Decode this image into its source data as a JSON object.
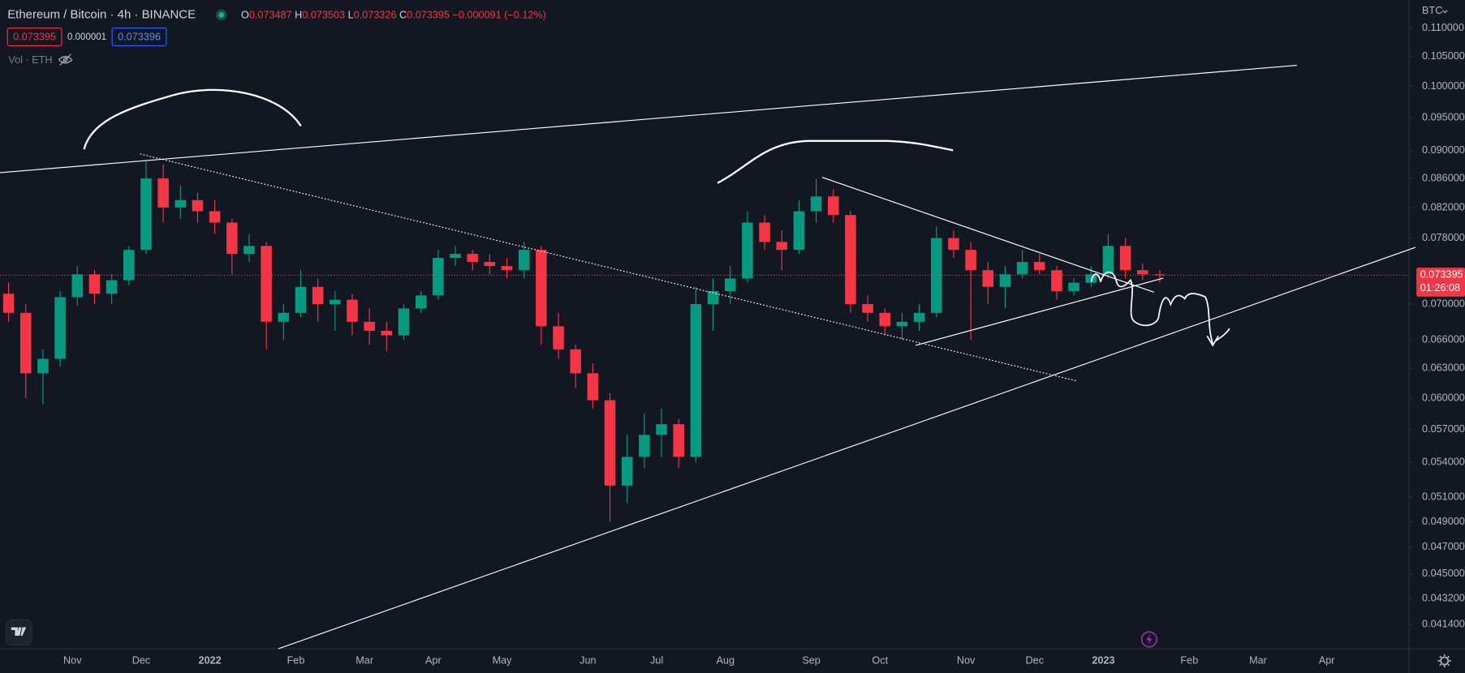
{
  "chart_data": {
    "type": "candlestick",
    "legend": {
      "symbol": "Ethereum / Bitcoin · 4h · BINANCE",
      "open_label": "O",
      "open": 0.073487,
      "high_label": "H",
      "high": 0.073503,
      "low_label": "L",
      "low": 0.073326,
      "close_label": "C",
      "close": 0.073395,
      "change": "−0.000091 (−0.12%)",
      "sell": 0.073395,
      "spread": 1e-06,
      "buy": 0.073396,
      "volume": "Vol · ETH"
    },
    "currency": "BTC",
    "countdown": "01:26:08",
    "log_scale": true,
    "grid": false,
    "up_color": "#089981",
    "down_color": "#f23645",
    "x": [
      null,
      null,
      null,
      null,
      "Nov",
      null,
      null,
      null,
      "Dec",
      null,
      null,
      null,
      "2022",
      null,
      null,
      null,
      null,
      "Feb",
      null,
      null,
      null,
      "Mar",
      null,
      null,
      null,
      "Apr",
      null,
      null,
      null,
      "May",
      null,
      null,
      null,
      null,
      "Jun",
      null,
      null,
      null,
      "Jul",
      null,
      null,
      null,
      "Aug",
      null,
      null,
      null,
      null,
      "Sep",
      null,
      null,
      null,
      "Oct",
      null,
      null,
      null,
      null,
      "Nov",
      null,
      null,
      null,
      "Dec",
      null,
      null,
      null,
      "2023",
      null,
      null,
      null,
      null,
      "Feb",
      null,
      null,
      null,
      "Mar",
      null,
      null,
      null,
      "Apr",
      null,
      null,
      null,
      null
    ],
    "open": [
      0.0712,
      0.069,
      0.0625,
      0.064,
      0.0708,
      0.0735,
      0.0712,
      0.0728,
      0.0765,
      0.086,
      0.082,
      0.083,
      0.0815,
      0.08,
      0.076,
      0.077,
      0.068,
      0.069,
      0.072,
      0.07,
      0.0705,
      0.068,
      0.067,
      0.0665,
      0.0695,
      0.071,
      0.0755,
      0.076,
      0.075,
      0.0745,
      0.074,
      0.0765,
      0.0675,
      0.065,
      0.0625,
      0.0598,
      0.052,
      0.0545,
      0.0565,
      0.0575,
      0.0545,
      0.07,
      0.0715,
      0.073,
      0.08,
      0.0775,
      0.0765,
      0.0815,
      0.0835,
      0.081,
      0.07,
      0.069,
      0.0675,
      0.068,
      0.069,
      0.078,
      0.0765,
      0.074,
      0.072,
      0.0735,
      0.075,
      0.074,
      0.0715,
      0.0725,
      0.0735,
      0.077,
      0.074,
      0.0735,
      null,
      null,
      null,
      null,
      null,
      null,
      null,
      null,
      null,
      null,
      null,
      null,
      null,
      null
    ],
    "high": [
      0.0725,
      0.07,
      0.065,
      0.0715,
      0.0745,
      0.074,
      0.0735,
      0.077,
      0.0885,
      0.088,
      0.085,
      0.084,
      0.083,
      0.0805,
      0.0785,
      0.0775,
      0.07,
      0.074,
      0.073,
      0.0715,
      0.0712,
      0.0695,
      0.068,
      0.07,
      0.0715,
      0.0765,
      0.077,
      0.0765,
      0.076,
      0.0755,
      0.0775,
      0.077,
      0.069,
      0.0655,
      0.0635,
      0.0605,
      0.0565,
      0.0585,
      0.059,
      0.058,
      0.072,
      0.073,
      0.0745,
      0.0815,
      0.081,
      0.079,
      0.083,
      0.086,
      0.0845,
      0.0815,
      0.071,
      0.0695,
      0.069,
      0.07,
      0.0795,
      0.079,
      0.0775,
      0.075,
      0.0745,
      0.0765,
      0.076,
      0.0745,
      0.073,
      0.0745,
      0.0785,
      0.078,
      0.0748,
      0.074,
      null,
      null,
      null,
      null,
      null,
      null,
      null,
      null,
      null,
      null,
      null,
      null,
      null,
      null
    ],
    "low": [
      0.068,
      0.06,
      0.0594,
      0.0632,
      0.0698,
      0.07,
      0.07,
      0.0722,
      0.076,
      0.08,
      0.0805,
      0.08,
      0.0785,
      0.0735,
      0.075,
      0.065,
      0.066,
      0.0685,
      0.068,
      0.067,
      0.0665,
      0.0655,
      0.0648,
      0.066,
      0.069,
      0.0705,
      0.0745,
      0.074,
      0.0735,
      0.073,
      0.073,
      0.0655,
      0.064,
      0.061,
      0.059,
      0.049,
      0.0505,
      0.0535,
      0.0545,
      0.0535,
      0.054,
      0.067,
      0.07,
      0.0725,
      0.0765,
      0.074,
      0.076,
      0.08,
      0.08,
      0.069,
      0.068,
      0.0665,
      0.066,
      0.067,
      0.0685,
      0.0755,
      0.066,
      0.07,
      0.0695,
      0.073,
      0.0735,
      0.0705,
      0.071,
      0.072,
      0.073,
      0.073,
      0.0728,
      0.0725,
      null,
      null,
      null,
      null,
      null,
      null,
      null,
      null,
      null,
      null,
      null,
      null,
      null,
      null
    ],
    "close": [
      0.069,
      0.0625,
      0.064,
      0.0708,
      0.0735,
      0.0712,
      0.0728,
      0.0765,
      0.086,
      0.082,
      0.083,
      0.0815,
      0.08,
      0.076,
      0.077,
      0.068,
      0.069,
      0.072,
      0.07,
      0.0705,
      0.068,
      0.067,
      0.0665,
      0.0695,
      0.071,
      0.0755,
      0.076,
      0.075,
      0.0745,
      0.074,
      0.0765,
      0.0675,
      0.065,
      0.0625,
      0.0598,
      0.052,
      0.0545,
      0.0565,
      0.0575,
      0.0545,
      0.07,
      0.0715,
      0.073,
      0.08,
      0.0775,
      0.0765,
      0.0815,
      0.0835,
      0.081,
      0.07,
      0.069,
      0.0675,
      0.068,
      0.069,
      0.078,
      0.0765,
      0.074,
      0.072,
      0.0735,
      0.075,
      0.074,
      0.0715,
      0.0725,
      0.0735,
      0.077,
      0.074,
      0.0735,
      0.073395,
      null,
      null,
      null,
      null,
      null,
      null,
      null,
      null,
      null,
      null,
      null,
      null,
      null,
      null
    ],
    "ylim": [
      0.0398,
      0.1152
    ],
    "yticks": [
      {
        "value": 0.11,
        "label": "0.110000"
      },
      {
        "value": 0.105,
        "label": "0.105000"
      },
      {
        "value": 0.1,
        "label": "0.100000"
      },
      {
        "value": 0.095,
        "label": "0.095000"
      },
      {
        "value": 0.09,
        "label": "0.090000"
      },
      {
        "value": 0.086,
        "label": "0.086000"
      },
      {
        "value": 0.082,
        "label": "0.082000"
      },
      {
        "value": 0.078,
        "label": "0.078000"
      },
      {
        "value": 0.07,
        "label": "0.070000"
      },
      {
        "value": 0.066,
        "label": "0.066000"
      },
      {
        "value": 0.063,
        "label": "0.063000"
      },
      {
        "value": 0.06,
        "label": "0.060000"
      },
      {
        "value": 0.057,
        "label": "0.057000"
      },
      {
        "value": 0.054,
        "label": "0.054000"
      },
      {
        "value": 0.051,
        "label": "0.051000"
      },
      {
        "value": 0.049,
        "label": "0.049000"
      },
      {
        "value": 0.047,
        "label": "0.047000"
      },
      {
        "value": 0.045,
        "label": "0.045000"
      },
      {
        "value": 0.0432,
        "label": "0.043200"
      },
      {
        "value": 0.0414,
        "label": "0.041400"
      }
    ]
  }
}
